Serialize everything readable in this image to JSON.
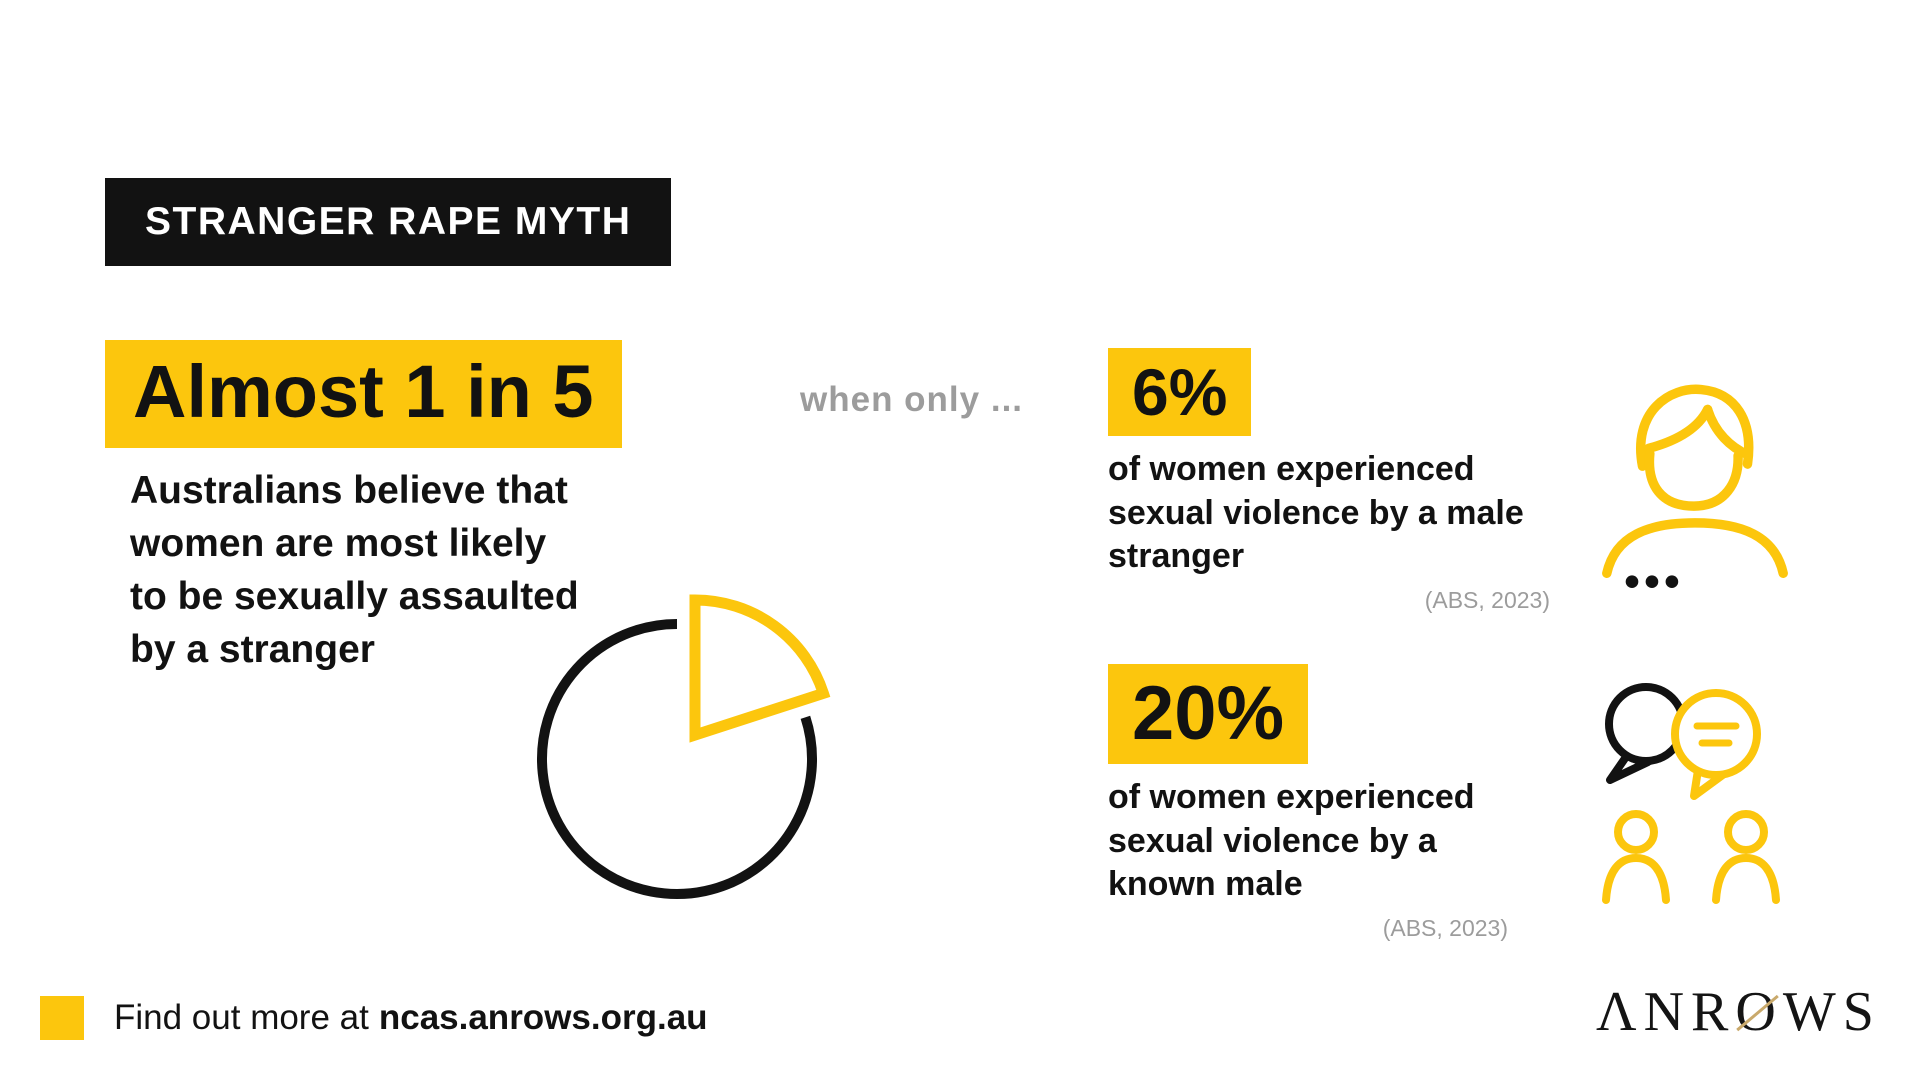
{
  "colors": {
    "yellow": "#FCC60D",
    "ink": "#121212",
    "gray": "#9C9C9C",
    "gold": "#C9A96B"
  },
  "banner": {
    "title": "STRANGER RAPE MYTH"
  },
  "myth": {
    "highlight": "Almost 1 in 5",
    "text": "Australians believe that\nwomen are most likely\nto be sexually assaulted\nby a stranger"
  },
  "connector": {
    "text": "when only ..."
  },
  "facts": [
    {
      "stat": "6%",
      "text": "of women experienced\nsexual violence by a male\nstranger",
      "source": "(ABS, 2023)"
    },
    {
      "stat": "20%",
      "text": "of women experienced\nsexual violence by a\nknown male",
      "source": "(ABS, 2023)"
    }
  ],
  "footer": {
    "prefix": "Find out more at",
    "link": "ncas.anrows.org.au"
  },
  "logo": {
    "pre": "ΛNR",
    "o": "O",
    "post": "WS",
    "name": "ANROWS"
  },
  "chart_data": {
    "type": "pie",
    "title": "STRANGER RAPE MYTH",
    "slices": [
      {
        "label": "Almost 1 in 5 Australians believe that women are most likely to be sexually assaulted by a stranger",
        "value": 20,
        "color": "#FCC60D",
        "exploded": true
      },
      {
        "label": "remainder",
        "value": 80,
        "color": "#121212"
      }
    ],
    "annotations": [
      {
        "value": "6%",
        "label": "of women experienced sexual violence by a male stranger",
        "source": "(ABS, 2023)"
      },
      {
        "value": "20%",
        "label": "of women experienced sexual violence by a known male",
        "source": "(ABS, 2023)"
      }
    ],
    "legend": "none",
    "grid": false
  }
}
